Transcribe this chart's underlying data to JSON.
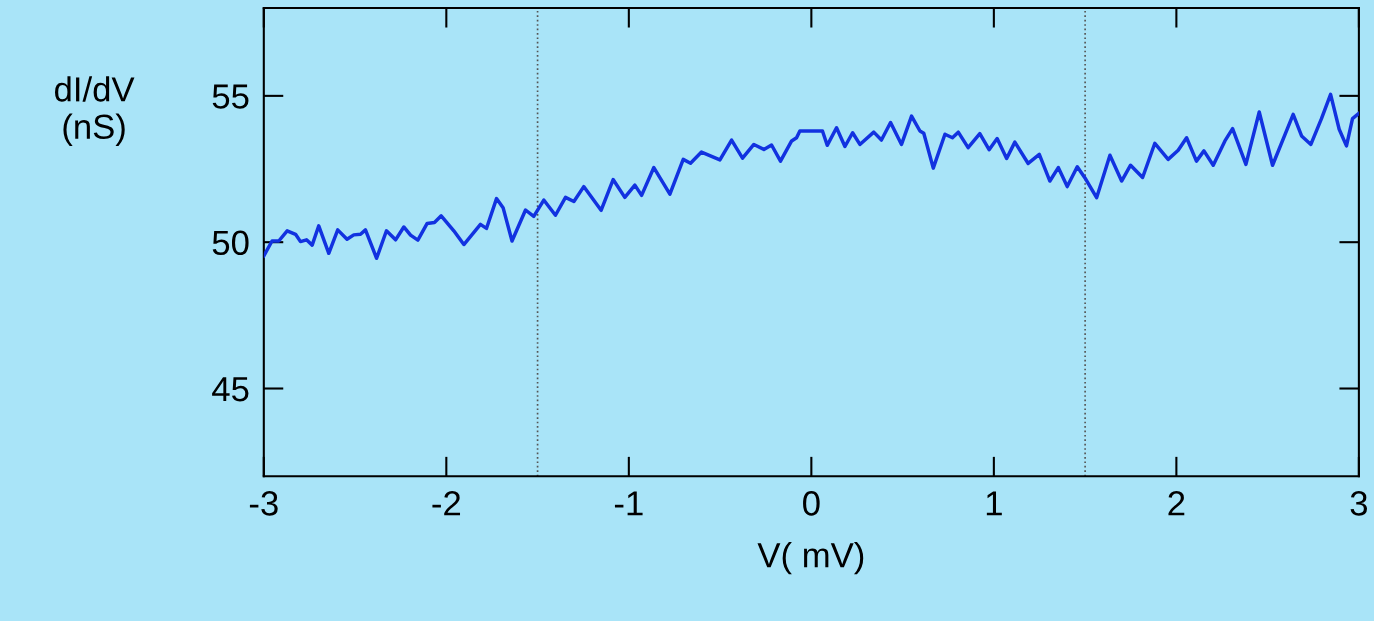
{
  "chart_data": {
    "type": "line",
    "xlabel": "V( mV)",
    "ylabel": "dI/dV\n(nS)",
    "x": [
      -3.0,
      -2.955,
      -2.918,
      -2.872,
      -2.826,
      -2.799,
      -2.766,
      -2.735,
      -2.699,
      -2.644,
      -2.595,
      -2.544,
      -2.507,
      -2.47,
      -2.443,
      -2.382,
      -2.328,
      -2.278,
      -2.233,
      -2.196,
      -2.156,
      -2.105,
      -2.065,
      -2.028,
      -1.959,
      -1.904,
      -1.813,
      -1.78,
      -1.725,
      -1.689,
      -1.64,
      -1.566,
      -1.521,
      -1.466,
      -1.402,
      -1.347,
      -1.301,
      -1.247,
      -1.152,
      -1.086,
      -1.022,
      -0.967,
      -0.93,
      -0.863,
      -0.775,
      -0.702,
      -0.662,
      -0.602,
      -0.501,
      -0.437,
      -0.377,
      -0.315,
      -0.26,
      -0.218,
      -0.169,
      -0.108,
      -0.081,
      -0.063,
      0.061,
      0.087,
      0.138,
      0.184,
      0.226,
      0.266,
      0.342,
      0.384,
      0.434,
      0.494,
      0.549,
      0.595,
      0.616,
      0.668,
      0.732,
      0.773,
      0.805,
      0.859,
      0.923,
      0.974,
      1.018,
      1.07,
      1.115,
      1.188,
      1.249,
      1.307,
      1.353,
      1.402,
      1.457,
      1.504,
      1.563,
      1.636,
      1.7,
      1.749,
      1.815,
      1.882,
      1.955,
      2.01,
      2.056,
      2.11,
      2.151,
      2.202,
      2.266,
      2.308,
      2.381,
      2.454,
      2.527,
      2.64,
      2.686,
      2.737,
      2.795,
      2.845,
      2.892,
      2.932,
      2.965,
      3.0
    ],
    "series": [
      {
        "color": "#1232e0",
        "values": [
          49.53,
          50.04,
          50.04,
          50.39,
          50.27,
          50.02,
          50.08,
          49.9,
          50.56,
          49.62,
          50.42,
          50.1,
          50.25,
          50.27,
          50.42,
          49.45,
          50.39,
          50.08,
          50.52,
          50.24,
          50.07,
          50.64,
          50.67,
          50.9,
          50.39,
          49.92,
          50.61,
          50.47,
          51.49,
          51.18,
          50.04,
          51.1,
          50.88,
          51.44,
          50.92,
          51.53,
          51.39,
          51.9,
          51.09,
          52.14,
          51.53,
          51.95,
          51.6,
          52.55,
          51.64,
          52.83,
          52.7,
          53.08,
          52.81,
          53.49,
          52.87,
          53.34,
          53.17,
          53.32,
          52.77,
          53.46,
          53.57,
          53.8,
          53.8,
          53.31,
          53.91,
          53.27,
          53.74,
          53.34,
          53.76,
          53.49,
          54.09,
          53.34,
          54.31,
          53.8,
          53.72,
          52.53,
          53.69,
          53.57,
          53.76,
          53.23,
          53.71,
          53.16,
          53.54,
          52.86,
          53.42,
          52.69,
          53.0,
          52.09,
          52.55,
          51.9,
          52.58,
          52.15,
          51.52,
          52.97,
          52.09,
          52.63,
          52.21,
          53.38,
          52.83,
          53.14,
          53.57,
          52.77,
          53.12,
          52.63,
          53.46,
          53.88,
          52.66,
          54.45,
          52.63,
          54.37,
          53.63,
          53.34,
          54.22,
          55.05,
          53.86,
          53.29,
          54.22,
          54.4
        ]
      }
    ],
    "xlim": [
      -3,
      3
    ],
    "ylim": [
      42,
      58
    ],
    "xticks": [
      -3,
      -2,
      -1,
      0,
      1,
      2,
      3
    ],
    "yticks": [
      45,
      50,
      55
    ],
    "ref_lines": [
      {
        "axis": "x",
        "value": -1.5,
        "line_style": "dotted",
        "color": "#555555"
      },
      {
        "axis": "x",
        "value": 1.5,
        "line_style": "dotted",
        "color": "#555555"
      }
    ],
    "grid": false,
    "legend": false,
    "marker": "none",
    "line_style": "solid"
  }
}
